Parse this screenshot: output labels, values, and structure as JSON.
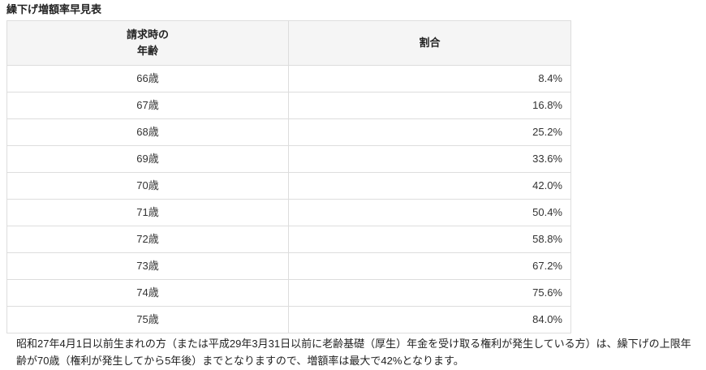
{
  "title": "繰下げ増額率早見表",
  "table": {
    "headers": [
      "請求時の",
      "年齢",
      "割合"
    ],
    "rows": [
      {
        "age": "66歳",
        "rate": "8.4%"
      },
      {
        "age": "67歳",
        "rate": "16.8%"
      },
      {
        "age": "68歳",
        "rate": "25.2%"
      },
      {
        "age": "69歳",
        "rate": "33.6%"
      },
      {
        "age": "70歳",
        "rate": "42.0%"
      },
      {
        "age": "71歳",
        "rate": "50.4%"
      },
      {
        "age": "72歳",
        "rate": "58.8%"
      },
      {
        "age": "73歳",
        "rate": "67.2%"
      },
      {
        "age": "74歳",
        "rate": "75.6%"
      },
      {
        "age": "75歳",
        "rate": "84.0%"
      }
    ]
  },
  "note": "昭和27年4月1日以前生まれの方（または平成29年3月31日以前に老齢基礎（厚生）年金を受け取る権利が発生している方）は、繰下げの上限年齢が70歳（権利が発生してから5年後）までとなりますので、増額率は最大で42%となります。"
}
